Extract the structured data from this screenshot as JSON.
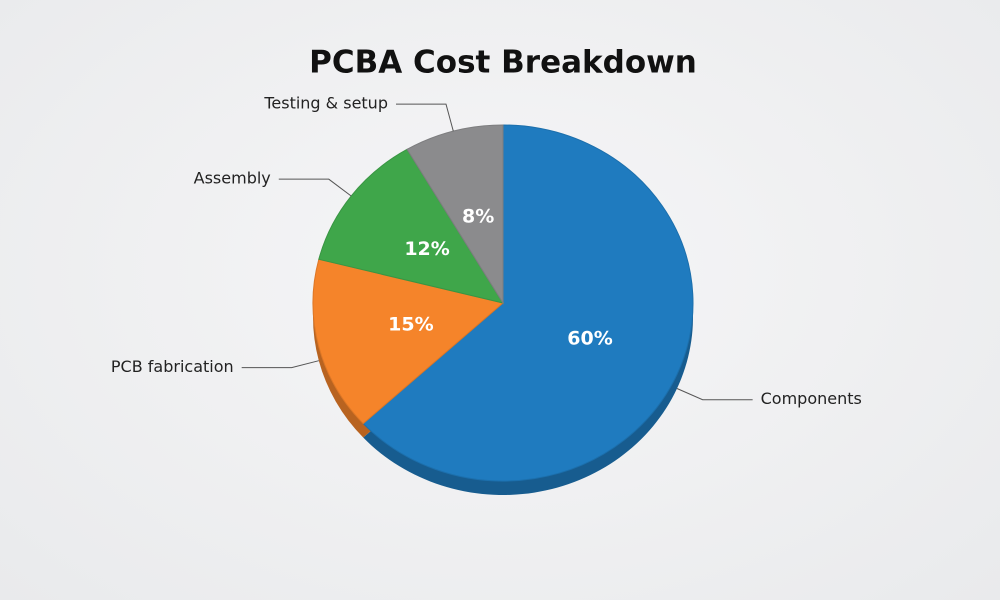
{
  "chart_data": {
    "type": "pie",
    "title": "PCBA Cost Breakdown",
    "categories": [
      "Components",
      "PCB fabrication",
      "Assembly",
      "Testing & setup"
    ],
    "values": [
      60,
      15,
      12,
      8
    ],
    "value_labels": [
      "60%",
      "15%",
      "12%",
      "8%"
    ],
    "colors": [
      "#1f7bbf",
      "#f5842a",
      "#3fa64a",
      "#8b8b8d"
    ]
  }
}
